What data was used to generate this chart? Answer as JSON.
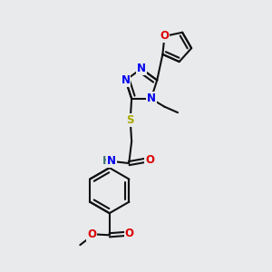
{
  "bg_color": "#e8eaec",
  "bond_color": "#111111",
  "N_color": "#0000ee",
  "O_color": "#dd0000",
  "S_color": "#aaaa00",
  "H_color": "#3a7070",
  "line_width": 1.5,
  "font_size": 8.5,
  "fig_w": 3.0,
  "fig_h": 3.0,
  "dpi": 100,
  "xlim": [
    0,
    10
  ],
  "ylim": [
    0,
    10
  ]
}
